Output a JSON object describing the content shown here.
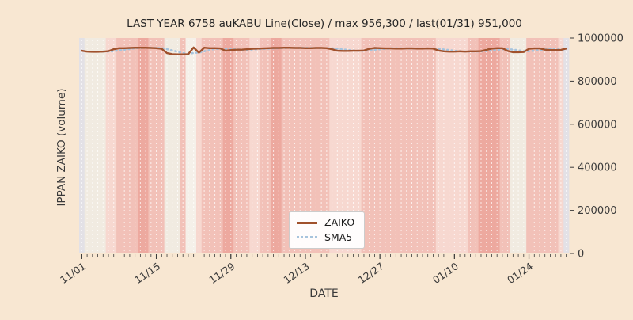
{
  "figure": {
    "title": "LAST YEAR 6758 auKABU Line(Close) / max 956,300 / last(01/31) 951,000",
    "xlabel": "DATE",
    "ylabel": "IPPAN ZAIKO (volume)",
    "background_color": "#f8e7d2",
    "tick_text_color": "#3a3a3a"
  },
  "legend": {
    "items": [
      {
        "label": "ZAIKO",
        "color": "#a0512c",
        "style": "solid"
      },
      {
        "label": "SMA5",
        "color": "#a7c4dd",
        "style": "dotted"
      }
    ]
  },
  "chart_data": {
    "type": "line",
    "title": "LAST YEAR 6758 auKABU Line(Close) / max 956,300 / last(01/31) 951,000",
    "xlabel": "DATE",
    "ylabel": "IPPAN ZAIKO (volume)",
    "ylim": [
      0,
      1000000
    ],
    "y_ticks": [
      0,
      200000,
      400000,
      600000,
      800000,
      1000000
    ],
    "y_tick_labels": [
      "0",
      "200000",
      "400000",
      "600000",
      "800000",
      "1000000"
    ],
    "days_total": 92,
    "x_major_ticks": [
      {
        "day": 0,
        "label": "11/01"
      },
      {
        "day": 14,
        "label": "11/15"
      },
      {
        "day": 28,
        "label": "11/29"
      },
      {
        "day": 42,
        "label": "12/13"
      },
      {
        "day": 56,
        "label": "12/27"
      },
      {
        "day": 70,
        "label": "01/10"
      },
      {
        "day": 84,
        "label": "01/24"
      }
    ],
    "annotations": {
      "max": "956,300",
      "last": "951,000",
      "last_date": "01/31"
    },
    "series": [
      {
        "name": "ZAIKO",
        "color": "#a0512c",
        "style": "solid",
        "values": [
          941000,
          937000,
          936000,
          936000,
          937000,
          939000,
          948000,
          953000,
          953000,
          954000,
          955000,
          955000,
          955000,
          954000,
          953000,
          950000,
          930000,
          925000,
          924000,
          924000,
          925000,
          956300,
          932000,
          955000,
          953000,
          953000,
          952000,
          941000,
          944000,
          946000,
          946000,
          948000,
          950000,
          951000,
          952000,
          953000,
          954000,
          954000,
          955000,
          955000,
          954000,
          954000,
          953000,
          953000,
          954000,
          954000,
          953000,
          948000,
          941000,
          940000,
          940000,
          941000,
          941000,
          942000,
          950000,
          954000,
          953000,
          952000,
          952000,
          951000,
          951000,
          952000,
          952000,
          951000,
          951000,
          952000,
          951000,
          942000,
          938000,
          937000,
          937000,
          938000,
          937000,
          938000,
          938000,
          939000,
          945000,
          951000,
          953000,
          953000,
          940000,
          934000,
          934000,
          935000,
          950000,
          952000,
          952000,
          946000,
          944000,
          944000,
          945000,
          951000
        ]
      },
      {
        "name": "SMA5",
        "color": "#a7c4dd",
        "style": "dotted",
        "window": 5
      }
    ],
    "background_stripes": {
      "palette": {
        "g": "#e3e1e6",
        "c": "#f1ebe1",
        "w": "#f5f0e9",
        "l": "#f7d8d0",
        "m": "#f2c1b8",
        "d": "#eda99f"
      },
      "gridline_color": "rgba(255,255,255,0.75)",
      "day_colors": [
        "g",
        "c",
        "c",
        "c",
        "c",
        "l",
        "l",
        "m",
        "m",
        "m",
        "m",
        "d",
        "d",
        "m",
        "m",
        "m",
        "c",
        "c",
        "c",
        "m",
        "w",
        "w",
        "l",
        "m",
        "m",
        "m",
        "m",
        "d",
        "d",
        "m",
        "m",
        "m",
        "l",
        "l",
        "m",
        "m",
        "d",
        "d",
        "m",
        "m",
        "m",
        "m",
        "m",
        "m",
        "m",
        "m",
        "m",
        "l",
        "l",
        "l",
        "l",
        "l",
        "l",
        "m",
        "m",
        "m",
        "m",
        "m",
        "m",
        "m",
        "m",
        "m",
        "m",
        "m",
        "m",
        "m",
        "m",
        "l",
        "l",
        "l",
        "l",
        "l",
        "l",
        "m",
        "m",
        "d",
        "d",
        "d",
        "d",
        "m",
        "m",
        "c",
        "c",
        "c",
        "m",
        "m",
        "m",
        "m",
        "m",
        "m",
        "l",
        "g"
      ]
    }
  }
}
